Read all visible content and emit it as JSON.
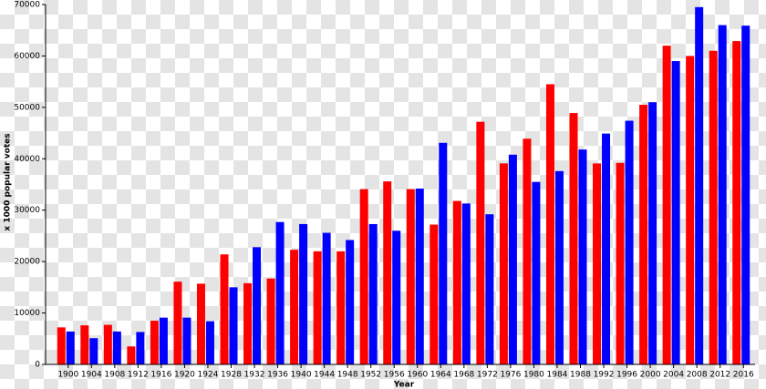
{
  "chart_data": {
    "type": "bar",
    "ylabel": "x 1000 popular votes",
    "xlabel": "Year",
    "categories": [
      "1900",
      "1904",
      "1908",
      "1912",
      "1916",
      "1920",
      "1924",
      "1928",
      "1932",
      "1936",
      "1940",
      "1944",
      "1948",
      "1952",
      "1956",
      "1960",
      "1964",
      "1968",
      "1972",
      "1976",
      "1980",
      "1984",
      "1988",
      "1992",
      "1996",
      "2000",
      "2004",
      "2008",
      "2012",
      "2016"
    ],
    "series": [
      {
        "color": "#ff0000",
        "values": [
          7200,
          7600,
          7700,
          3500,
          8500,
          16100,
          15700,
          21400,
          15800,
          16700,
          22300,
          22000,
          22000,
          34100,
          35600,
          34100,
          27200,
          31800,
          47200,
          39100,
          43900,
          54500,
          48900,
          39100,
          39200,
          50500,
          62000,
          60000,
          61000,
          62900
        ]
      },
      {
        "color": "#0000ff",
        "values": [
          6400,
          5100,
          6400,
          6300,
          9100,
          9100,
          8400,
          15000,
          22800,
          27700,
          27300,
          25600,
          24200,
          27300,
          26000,
          34200,
          43100,
          31300,
          29200,
          40800,
          35500,
          37600,
          41800,
          44900,
          47400,
          51000,
          59000,
          69500,
          66000,
          65900
        ]
      }
    ],
    "ylim": [
      0,
      70000
    ],
    "yticks": [
      0,
      10000,
      20000,
      30000,
      40000,
      50000,
      60000,
      70000
    ]
  }
}
